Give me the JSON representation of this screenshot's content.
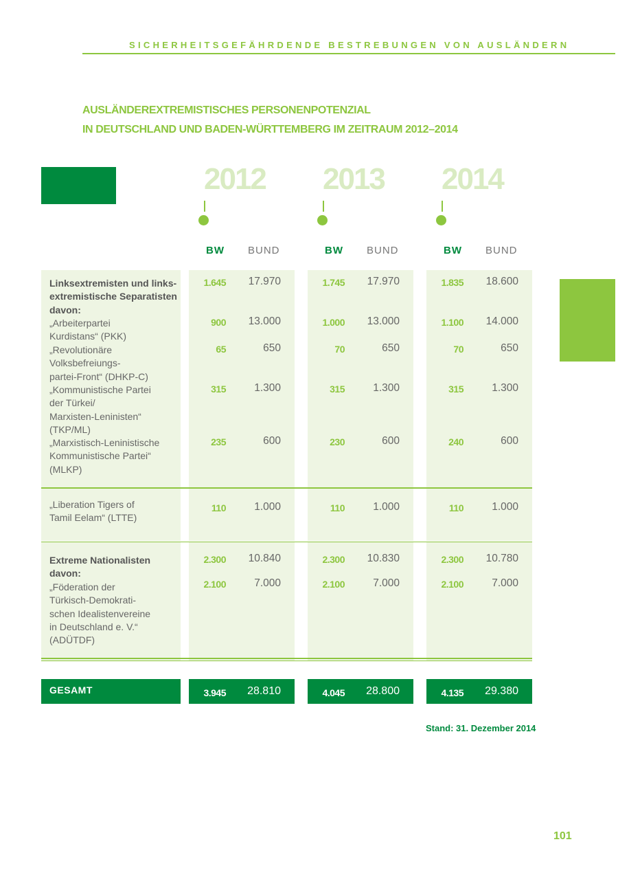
{
  "header": {
    "running_title": "SICHERHEITSGEFÄHRDENDE BESTREBUNGEN VON AUSLÄNDERN"
  },
  "title": {
    "line1": "AUSLÄNDEREXTREMISTISCHES PERSONENPOTENZIAL",
    "line2": "IN DEUTSCHLAND UND BADEN-WÜRTTEMBERG IM ZEITRAUM 2012–2014"
  },
  "years": [
    "2012",
    "2013",
    "2014"
  ],
  "col_headers": {
    "bw": "BW",
    "bund": "BUND"
  },
  "rows": [
    {
      "label": "Linksextremisten und links-\nextremistische Separatisten\ndavon:",
      "bold": true,
      "values": [
        [
          "1.645",
          "17.970"
        ],
        [
          "1.745",
          "17.970"
        ],
        [
          "1.835",
          "18.600"
        ]
      ]
    },
    {
      "label": "„Arbeiterpartei\nKurdistans“ (PKK)",
      "bold": false,
      "values": [
        [
          "900",
          "13.000"
        ],
        [
          "1.000",
          "13.000"
        ],
        [
          "1.100",
          "14.000"
        ]
      ]
    },
    {
      "label": "„Revolutionäre\nVolksbefreiungs-\npartei-Front“ (DHKP-C)",
      "bold": false,
      "values": [
        [
          "65",
          "650"
        ],
        [
          "70",
          "650"
        ],
        [
          "70",
          "650"
        ]
      ]
    },
    {
      "label": "„Kommunistische Partei\nder Türkei/\nMarxisten-Leninisten“\n(TKP/ML)",
      "bold": false,
      "values": [
        [
          "315",
          "1.300"
        ],
        [
          "315",
          "1.300"
        ],
        [
          "315",
          "1.300"
        ]
      ]
    },
    {
      "label": "„Marxistisch-Leninistische\nKommunistische Partei“\n(MLKP)",
      "bold": false,
      "values": [
        [
          "235",
          "600"
        ],
        [
          "230",
          "600"
        ],
        [
          "240",
          "600"
        ]
      ]
    },
    {
      "label": "„Liberation Tigers of\nTamil Eelam“ (LTTE)",
      "bold": false,
      "values": [
        [
          "110",
          "1.000"
        ],
        [
          "110",
          "1.000"
        ],
        [
          "110",
          "1.000"
        ]
      ]
    },
    {
      "label": "Extreme Nationalisten\ndavon:",
      "bold": true,
      "values": [
        [
          "2.300",
          "10.840"
        ],
        [
          "2.300",
          "10.830"
        ],
        [
          "2.300",
          "10.780"
        ]
      ]
    },
    {
      "label": "„Föderation der\nTürkisch-Demokrati-\nschen Idealistenvereine\nin Deutschland e. V.“\n(ADÜTDF)",
      "bold": false,
      "values": [
        [
          "2.100",
          "7.000"
        ],
        [
          "2.100",
          "7.000"
        ],
        [
          "2.100",
          "7.000"
        ]
      ]
    }
  ],
  "total": {
    "label": "GESAMT",
    "values": [
      [
        "3.945",
        "28.810"
      ],
      [
        "4.045",
        "28.800"
      ],
      [
        "4.135",
        "29.380"
      ]
    ]
  },
  "footnote": "Stand: 31. Dezember 2014",
  "page_number": "101",
  "colors": {
    "light_green": "#8dc63f",
    "dark_green": "#008a3e",
    "panel": "#eef5e3"
  }
}
